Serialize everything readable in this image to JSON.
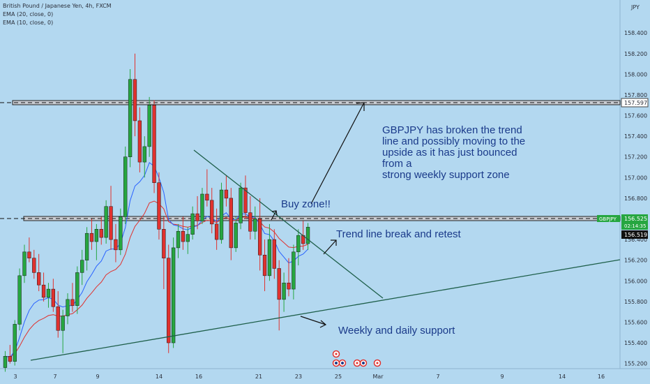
{
  "header": {
    "symbol_line": "British Pound / Japanese Yen, 4h, FXCM",
    "ema20_line": "EMA (20, close, 0)",
    "ema10_line": "EMA (10, close, 0)",
    "currency": "JPY"
  },
  "price_axis": {
    "ticks": [
      "158.400",
      "158.200",
      "158.000",
      "157.800",
      "157.600",
      "157.400",
      "157.200",
      "157.000",
      "156.800",
      "156.600",
      "156.400",
      "156.200",
      "156.000",
      "155.800",
      "155.600",
      "155.400",
      "155.200"
    ],
    "labels": {
      "resistance": "157.597",
      "symbol": "GBPJPY",
      "last_price": "156.525",
      "countdown": "02:14:35",
      "ema_value": "156.519"
    }
  },
  "time_axis": {
    "ticks": [
      "3",
      "7",
      "9",
      "14",
      "16",
      "21",
      "23",
      "25",
      "Mar",
      "7",
      "9",
      "14",
      "16"
    ]
  },
  "annotations": {
    "main_note": [
      "GBPJPY has broken the trend",
      "line and possibly moving to the",
      "upside as it has just bounced",
      "from a",
      "strong weekly support zone"
    ],
    "buy_zone": "Buy zone!!",
    "trend_break": "Trend line break and retest",
    "support": "Weekly and daily support"
  },
  "colors": {
    "background": "#b3d8f0",
    "bull_candle": "#26a640",
    "bear_candle": "#e0312e",
    "ema20": "#e0312e",
    "ema10": "#2962ff",
    "line": "#1e5f4a",
    "zone_fill": "#c9ccd2",
    "text": "#1a3a8a",
    "symbol_label": "#26a640"
  },
  "chart_data": {
    "type": "candlestick",
    "title": "British Pound / Japanese Yen, 4h, FXCM",
    "ylim": [
      155.15,
      158.55
    ],
    "series": [
      {
        "name": "EMA (20, close, 0)",
        "indicator": "ema20"
      },
      {
        "name": "EMA (10, close, 0)",
        "indicator": "ema10"
      }
    ],
    "candles": [
      {
        "o": 155.16,
        "h": 155.32,
        "l": 155.12,
        "c": 155.27
      },
      {
        "o": 155.27,
        "h": 155.38,
        "l": 155.2,
        "c": 155.22
      },
      {
        "o": 155.22,
        "h": 155.62,
        "l": 155.18,
        "c": 155.58
      },
      {
        "o": 155.58,
        "h": 156.12,
        "l": 155.52,
        "c": 156.05
      },
      {
        "o": 156.05,
        "h": 156.35,
        "l": 155.98,
        "c": 156.28
      },
      {
        "o": 156.28,
        "h": 156.42,
        "l": 156.18,
        "c": 156.22
      },
      {
        "o": 156.22,
        "h": 156.3,
        "l": 156.02,
        "c": 156.08
      },
      {
        "o": 156.08,
        "h": 156.26,
        "l": 155.9,
        "c": 155.96
      },
      {
        "o": 155.96,
        "h": 156.08,
        "l": 155.8,
        "c": 155.84
      },
      {
        "o": 155.84,
        "h": 155.98,
        "l": 155.74,
        "c": 155.92
      },
      {
        "o": 155.92,
        "h": 156.02,
        "l": 155.7,
        "c": 155.75
      },
      {
        "o": 155.75,
        "h": 155.9,
        "l": 155.45,
        "c": 155.52
      },
      {
        "o": 155.52,
        "h": 155.72,
        "l": 155.3,
        "c": 155.66
      },
      {
        "o": 155.66,
        "h": 155.88,
        "l": 155.58,
        "c": 155.82
      },
      {
        "o": 155.82,
        "h": 155.98,
        "l": 155.7,
        "c": 155.76
      },
      {
        "o": 155.76,
        "h": 156.14,
        "l": 155.68,
        "c": 156.08
      },
      {
        "o": 156.08,
        "h": 156.3,
        "l": 155.96,
        "c": 156.2
      },
      {
        "o": 156.2,
        "h": 156.52,
        "l": 156.1,
        "c": 156.46
      },
      {
        "o": 156.46,
        "h": 156.6,
        "l": 156.3,
        "c": 156.38
      },
      {
        "o": 156.38,
        "h": 156.55,
        "l": 156.2,
        "c": 156.5
      },
      {
        "o": 156.5,
        "h": 156.62,
        "l": 156.35,
        "c": 156.42
      },
      {
        "o": 156.42,
        "h": 156.78,
        "l": 156.36,
        "c": 156.72
      },
      {
        "o": 156.72,
        "h": 156.92,
        "l": 156.3,
        "c": 156.4
      },
      {
        "o": 156.4,
        "h": 156.55,
        "l": 156.18,
        "c": 156.3
      },
      {
        "o": 156.3,
        "h": 156.7,
        "l": 156.25,
        "c": 156.62
      },
      {
        "o": 156.62,
        "h": 157.3,
        "l": 156.55,
        "c": 157.2
      },
      {
        "o": 157.2,
        "h": 158.05,
        "l": 157.1,
        "c": 157.95
      },
      {
        "o": 157.95,
        "h": 158.2,
        "l": 157.4,
        "c": 157.55
      },
      {
        "o": 157.55,
        "h": 157.68,
        "l": 157.05,
        "c": 157.15
      },
      {
        "o": 157.15,
        "h": 157.4,
        "l": 157.0,
        "c": 157.3
      },
      {
        "o": 157.3,
        "h": 157.78,
        "l": 157.2,
        "c": 157.7
      },
      {
        "o": 157.7,
        "h": 157.75,
        "l": 156.85,
        "c": 156.95
      },
      {
        "o": 156.95,
        "h": 157.05,
        "l": 156.4,
        "c": 156.5
      },
      {
        "o": 156.5,
        "h": 156.62,
        "l": 155.92,
        "c": 156.22
      },
      {
        "o": 156.22,
        "h": 156.35,
        "l": 155.3,
        "c": 155.4
      },
      {
        "o": 155.4,
        "h": 156.42,
        "l": 155.35,
        "c": 156.32
      },
      {
        "o": 156.32,
        "h": 156.55,
        "l": 156.22,
        "c": 156.48
      },
      {
        "o": 156.48,
        "h": 156.62,
        "l": 156.3,
        "c": 156.38
      },
      {
        "o": 156.38,
        "h": 156.52,
        "l": 156.26,
        "c": 156.45
      },
      {
        "o": 156.45,
        "h": 156.72,
        "l": 156.4,
        "c": 156.65
      },
      {
        "o": 156.65,
        "h": 156.82,
        "l": 156.5,
        "c": 156.58
      },
      {
        "o": 156.58,
        "h": 156.9,
        "l": 156.55,
        "c": 156.84
      },
      {
        "o": 156.84,
        "h": 157.08,
        "l": 156.72,
        "c": 156.78
      },
      {
        "o": 156.78,
        "h": 156.9,
        "l": 156.46,
        "c": 156.55
      },
      {
        "o": 156.55,
        "h": 156.7,
        "l": 156.3,
        "c": 156.4
      },
      {
        "o": 156.4,
        "h": 156.95,
        "l": 156.36,
        "c": 156.88
      },
      {
        "o": 156.88,
        "h": 157.02,
        "l": 156.72,
        "c": 156.8
      },
      {
        "o": 156.8,
        "h": 156.9,
        "l": 156.2,
        "c": 156.32
      },
      {
        "o": 156.32,
        "h": 156.62,
        "l": 156.28,
        "c": 156.56
      },
      {
        "o": 156.56,
        "h": 156.95,
        "l": 156.5,
        "c": 156.9
      },
      {
        "o": 156.9,
        "h": 157.02,
        "l": 156.6,
        "c": 156.66
      },
      {
        "o": 156.66,
        "h": 156.82,
        "l": 156.4,
        "c": 156.48
      },
      {
        "o": 156.48,
        "h": 156.72,
        "l": 156.4,
        "c": 156.6
      },
      {
        "o": 156.6,
        "h": 156.8,
        "l": 156.1,
        "c": 156.25
      },
      {
        "o": 156.25,
        "h": 156.4,
        "l": 155.9,
        "c": 156.05
      },
      {
        "o": 156.05,
        "h": 156.55,
        "l": 156.0,
        "c": 156.4
      },
      {
        "o": 156.4,
        "h": 156.5,
        "l": 156.02,
        "c": 156.12
      },
      {
        "o": 156.12,
        "h": 156.2,
        "l": 155.52,
        "c": 155.82
      },
      {
        "o": 155.82,
        "h": 156.08,
        "l": 155.7,
        "c": 155.98
      },
      {
        "o": 155.98,
        "h": 156.22,
        "l": 155.85,
        "c": 155.92
      },
      {
        "o": 155.92,
        "h": 156.35,
        "l": 155.82,
        "c": 156.28
      },
      {
        "o": 156.28,
        "h": 156.5,
        "l": 156.15,
        "c": 156.44
      },
      {
        "o": 156.44,
        "h": 156.58,
        "l": 156.3,
        "c": 156.36
      },
      {
        "o": 156.36,
        "h": 156.56,
        "l": 156.3,
        "c": 156.52
      }
    ],
    "horizontal_levels": [
      157.597,
      156.525
    ],
    "xlabel": "",
    "ylabel": "JPY"
  }
}
